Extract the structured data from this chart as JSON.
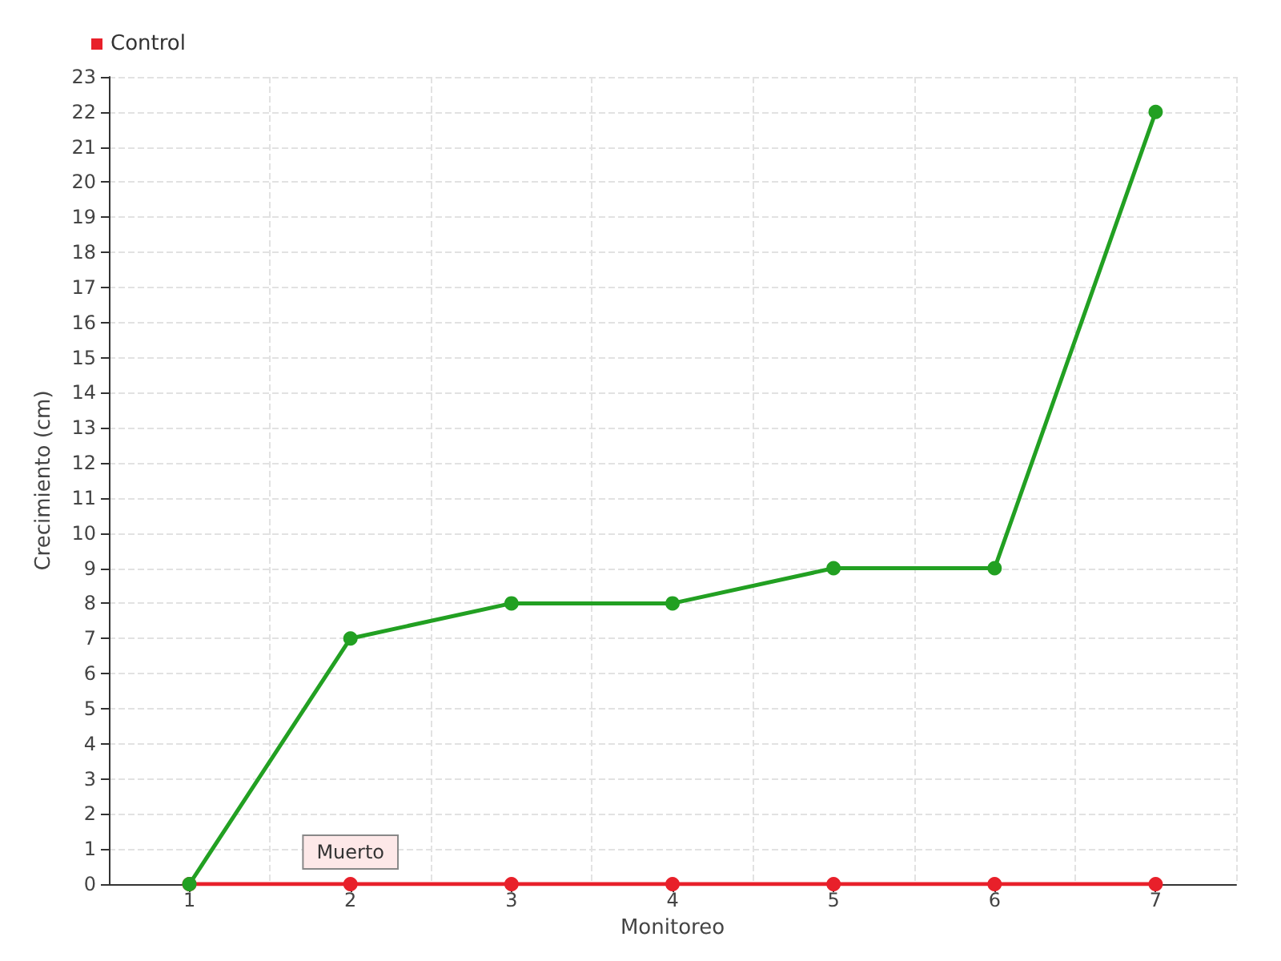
{
  "chart_data": {
    "type": "line",
    "xlabel": "Monitoreo",
    "ylabel": "Crecimiento (cm)",
    "categories": [
      "1",
      "2",
      "3",
      "4",
      "5",
      "6",
      "7"
    ],
    "series": [
      {
        "color": "#22a022",
        "values": [
          0,
          7,
          8,
          8,
          9,
          9,
          22
        ]
      },
      {
        "name": "Control",
        "color": "#e8202a",
        "values": [
          0,
          0,
          0,
          0,
          0,
          0,
          0
        ]
      }
    ],
    "ylim": [
      0,
      23
    ],
    "yticks": [
      0,
      1,
      2,
      3,
      4,
      5,
      6,
      7,
      8,
      9,
      10,
      11,
      12,
      13,
      14,
      15,
      16,
      17,
      18,
      19,
      20,
      21,
      22,
      23
    ],
    "annotations": [
      {
        "text": "Muerto",
        "x": "2",
        "y": 0
      }
    ],
    "grid": true,
    "legend": "top left",
    "marker": "circle",
    "line_style": "solid"
  }
}
